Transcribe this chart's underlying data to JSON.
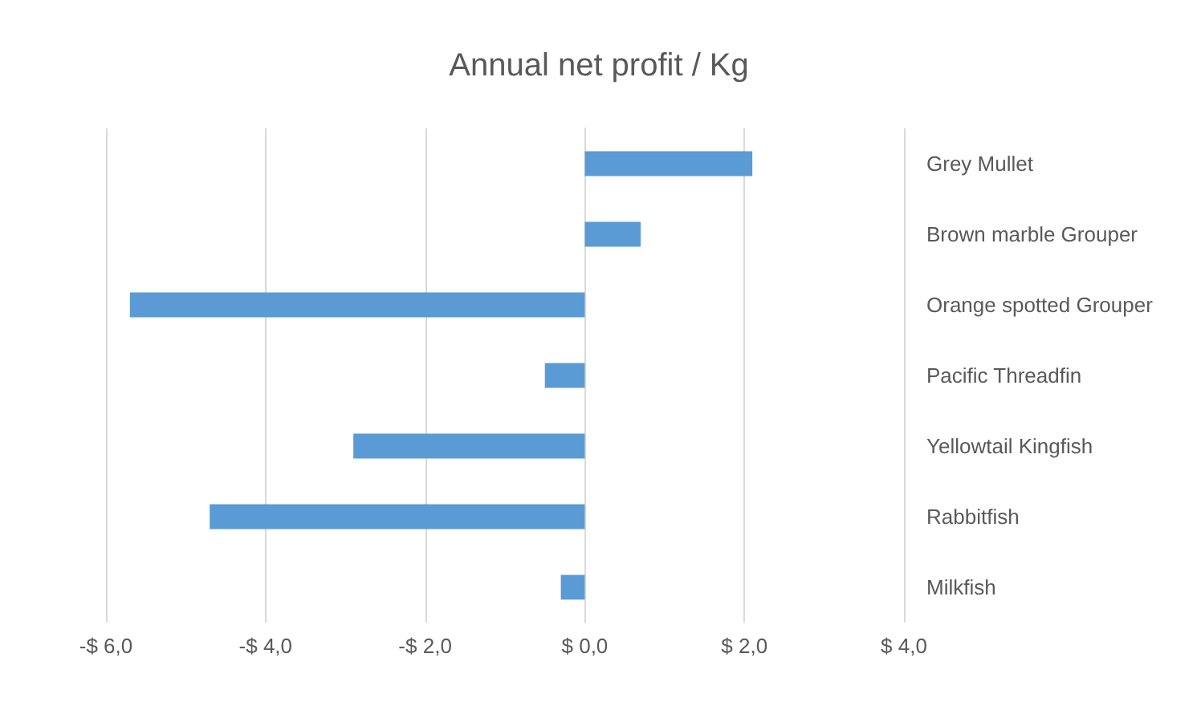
{
  "chart_data": {
    "type": "bar",
    "orientation": "horizontal",
    "title": "Annual net profit / Kg",
    "categories": [
      "Grey Mullet",
      "Brown marble Grouper",
      "Orange spotted Grouper",
      "Pacific Threadfin",
      "Yellowtail Kingfish",
      "Rabbitfish",
      "Milkfish"
    ],
    "values": [
      2.1,
      0.7,
      -5.7,
      -0.5,
      -2.9,
      -4.7,
      -0.3
    ],
    "color": "#5b9bd5",
    "xlim": [
      -6,
      4
    ],
    "xticks": [
      {
        "value": -6,
        "label": "-$ 6,0"
      },
      {
        "value": -4,
        "label": "-$ 4,0"
      },
      {
        "value": -2,
        "label": "-$ 2,0"
      },
      {
        "value": 0,
        "label": "$ 0,0"
      },
      {
        "value": 2,
        "label": "$ 2,0"
      },
      {
        "value": 4,
        "label": "$ 4,0"
      }
    ],
    "grid": "x"
  }
}
